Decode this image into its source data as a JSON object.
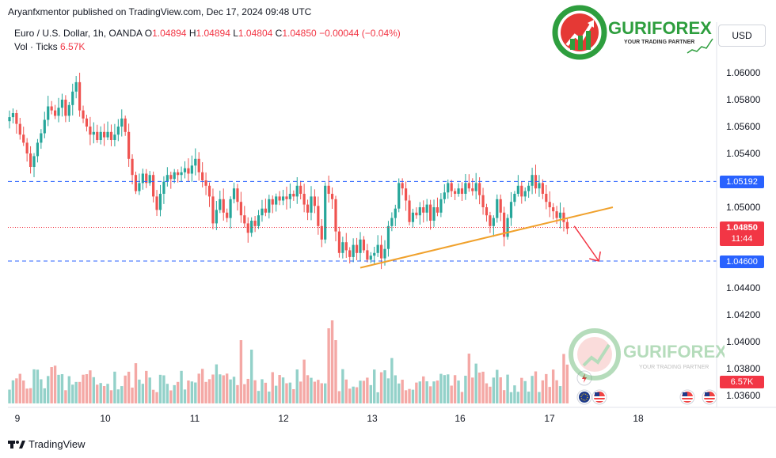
{
  "header": {
    "published": "Aryanfxmentor published on TradingView.com, Dec 17, 2024 09:48 UTC",
    "symbol": "Euro / U.S. Dollar, 1h, OANDA",
    "o_label": "O",
    "o_value": "1.04894",
    "h_label": "H",
    "h_value": "1.04894",
    "l_label": "L",
    "l_value": "1.04804",
    "c_label": "C",
    "c_value": "1.04850",
    "change": "−0.00044 (−0.04%)",
    "vol_label": "Vol · Ticks",
    "vol_value": "6.57K"
  },
  "currency_button": "USD",
  "footer_brand": "TradingView",
  "watermark": {
    "name": "GURIFOREX",
    "tagline": "YOUR TRADING PARTNER"
  },
  "price_labels": {
    "level_upper": "1.05192",
    "current": "1.04850",
    "countdown": "11:44",
    "level_lower": "1.04600",
    "volume": "6.57K"
  },
  "colors": {
    "up": "#26a69a",
    "down": "#ef5350",
    "up_volume": "#93d1c9",
    "down_volume": "#f4a8a5",
    "level_line": "#2962ff",
    "trendline": "#f0a12c",
    "arrow": "#f23645",
    "current_line": "#f23645"
  },
  "chart_data": {
    "type": "candlestick",
    "symbol": "EURUSD",
    "timeframe": "1h",
    "x_ticks": [
      "9",
      "10",
      "11",
      "12",
      "13",
      "16",
      "17",
      "18"
    ],
    "y_ticks": [
      "1.06000",
      "1.05800",
      "1.05600",
      "1.05400",
      "1.05200",
      "1.05000",
      "1.04800",
      "1.04600",
      "1.04400",
      "1.04200",
      "1.04000",
      "1.03800",
      "1.03600"
    ],
    "ylim": [
      1.0355,
      1.0625
    ],
    "horizontal_levels": [
      1.05192,
      1.046
    ],
    "current_price": 1.0485,
    "trendline": {
      "from": {
        "bar": 100,
        "price": 1.0455
      },
      "to": {
        "bar": 172,
        "price": 1.05
      }
    },
    "projection_arrow": {
      "from": {
        "bar": 161,
        "price": 1.0486
      },
      "to": {
        "bar": 168,
        "price": 1.046
      }
    },
    "candle_closes": [
      1.0567,
      1.057,
      1.0562,
      1.0554,
      1.0548,
      1.054,
      1.053,
      1.0538,
      1.0548,
      1.0555,
      1.0565,
      1.0575,
      1.0572,
      1.0568,
      1.0574,
      1.058,
      1.0568,
      1.0576,
      1.0586,
      1.0593,
      1.0572,
      1.0566,
      1.056,
      1.0554,
      1.0556,
      1.055,
      1.0556,
      1.0552,
      1.0556,
      1.055,
      1.0554,
      1.056,
      1.0566,
      1.0556,
      1.0536,
      1.0524,
      1.0512,
      1.0518,
      1.0525,
      1.0518,
      1.0524,
      1.0508,
      1.0498,
      1.051,
      1.0519,
      1.0524,
      1.0521,
      1.0526,
      1.0524,
      1.0526,
      1.0529,
      1.0525,
      1.0531,
      1.0536,
      1.0526,
      1.052,
      1.0516,
      1.0508,
      1.0488,
      1.0498,
      1.0506,
      1.0496,
      1.0492,
      1.0506,
      1.0514,
      1.0504,
      1.0494,
      1.0488,
      1.0481,
      1.049,
      1.0486,
      1.0494,
      1.0499,
      1.0496,
      1.0506,
      1.0502,
      1.0508,
      1.0505,
      1.0508,
      1.0506,
      1.051,
      1.0508,
      1.0516,
      1.051,
      1.0502,
      1.0496,
      1.0508,
      1.0501,
      1.0486,
      1.0476,
      1.0516,
      1.051,
      1.0506,
      1.0482,
      1.0466,
      1.0474,
      1.0468,
      1.0463,
      1.0472,
      1.0466,
      1.0476,
      1.0468,
      1.0461,
      1.0464,
      1.0466,
      1.0472,
      1.0462,
      1.0469,
      1.0486,
      1.0492,
      1.0499,
      1.0518,
      1.0514,
      1.0505,
      1.0489,
      1.0496,
      1.0494,
      1.05,
      1.0496,
      1.0502,
      1.049,
      1.05,
      1.0496,
      1.0506,
      1.0511,
      1.0518,
      1.0512,
      1.051,
      1.0514,
      1.051,
      1.0518,
      1.0514,
      1.0512,
      1.0518,
      1.0509,
      1.05,
      1.0494,
      1.0486,
      1.0492,
      1.0506,
      1.0496,
      1.0478,
      1.0492,
      1.0504,
      1.051,
      1.0516,
      1.0508,
      1.0512,
      1.0516,
      1.0524,
      1.0514,
      1.0518,
      1.051,
      1.0504,
      1.05,
      1.0497,
      1.0492,
      1.0496,
      1.0489,
      1.0484
    ],
    "volume_series_name": "Vol · Ticks"
  }
}
